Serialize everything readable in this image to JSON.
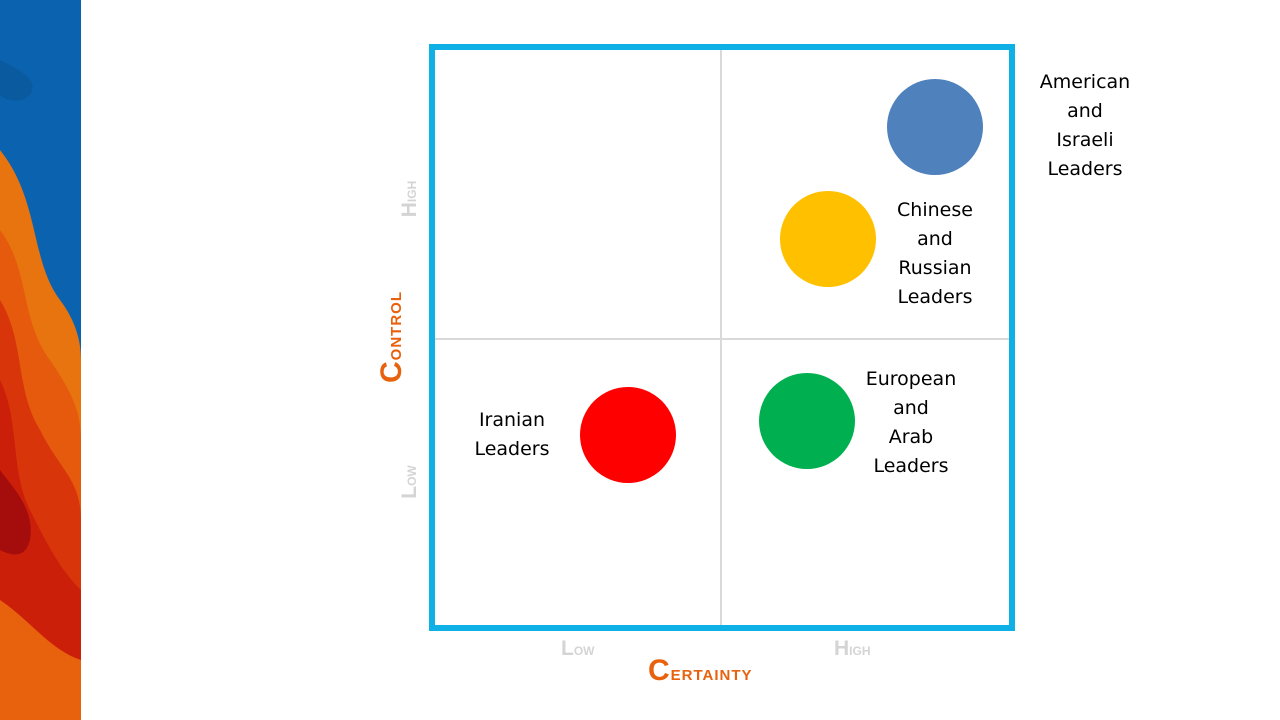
{
  "diagram": {
    "x_axis": {
      "title": "Certainty",
      "ticks": [
        "Low",
        "High"
      ]
    },
    "y_axis": {
      "title": "Control",
      "ticks": [
        "Low",
        "High"
      ]
    },
    "items": [
      {
        "label": "American\nand\nIsraeli\nLeaders",
        "color": "#4f81bd"
      },
      {
        "label": "Chinese\nand\nRussian\nLeaders",
        "color": "#ffc000"
      },
      {
        "label": "European\nand\nArab\nLeaders",
        "color": "#00b050"
      },
      {
        "label": "Iranian\nLeaders",
        "color": "#ff0000"
      }
    ],
    "frame_color": "#0fb0e6",
    "accent_color": "#e8620e"
  }
}
